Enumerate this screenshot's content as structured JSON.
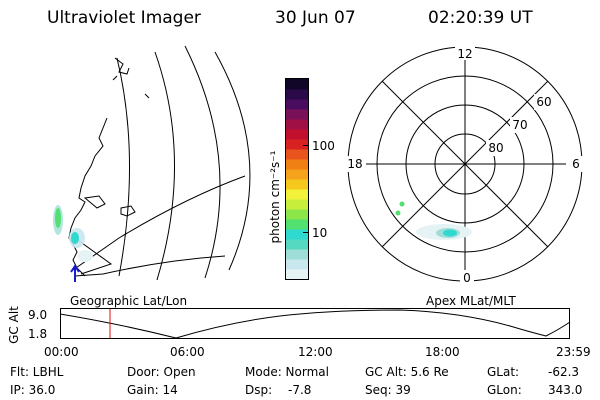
{
  "header": {
    "title": "Ultraviolet Imager",
    "date": "30 Jun 07",
    "time": "02:20:39 UT"
  },
  "geo_panel": {
    "label": "Geographic Lat/Lon"
  },
  "polar_panel": {
    "label": "Apex MLat/MLT",
    "mlt_top": "12",
    "mlt_left": "18",
    "mlt_right": "6",
    "mlt_bottom": "0",
    "mlat_60": "60",
    "mlat_70": "70",
    "mlat_80": "80"
  },
  "colorbar": {
    "unit_label": "photon cm⁻²s⁻¹",
    "tick_100": "100",
    "tick_10": "10",
    "colors": [
      "#e6f3f5",
      "#c9e8ee",
      "#9fded8",
      "#55d9c0",
      "#2fd9d0",
      "#52e070",
      "#8ce64a",
      "#c8ee3c",
      "#f2f23a",
      "#f5c81e",
      "#f5a21c",
      "#f07f14",
      "#e8541c",
      "#d82222",
      "#c0102e",
      "#a01044",
      "#7a1058",
      "#4a0c5e",
      "#2a0a48",
      "#120628"
    ]
  },
  "timeline": {
    "axis_label": "GC Alt",
    "y_max": "9.0",
    "y_min": "1.8",
    "t0": "00:00",
    "t1": "06:00",
    "t2": "12:00",
    "t3": "18:00",
    "t4": "23:59",
    "cursor_color": "#e01010"
  },
  "info": {
    "flt": "Flt: LBHL",
    "ip": "IP: 36.0",
    "door": "Door: Open",
    "gain": "Gain: 14",
    "mode": "Mode: Normal",
    "dsp_label": "Dsp:",
    "dsp_value": "-7.8",
    "gcalt": "GC Alt: 5.6 Re",
    "seq": "Seq: 39",
    "glat_label": "GLat:",
    "glat_value": "-62.3",
    "glon_label": "GLon:",
    "glon_value": "343.0"
  }
}
